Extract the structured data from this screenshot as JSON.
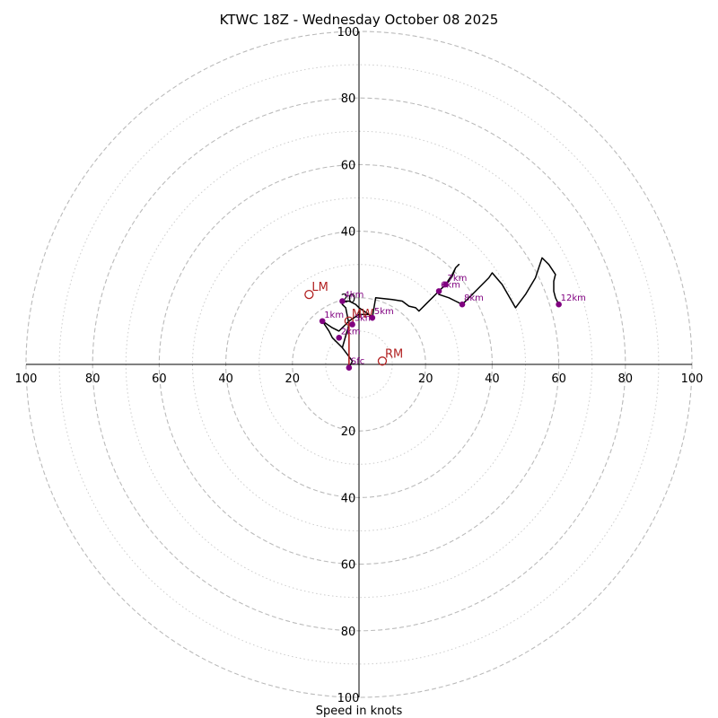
{
  "chart_data": {
    "type": "hodograph",
    "title": "KTWC 18Z - Wednesday October 08 2025",
    "xlabel": "Speed in knots",
    "range": 100,
    "ring_major_step": 20,
    "ring_minor_step": 10,
    "ticks": {
      "x_left": [
        "100",
        "80",
        "60",
        "40",
        "20"
      ],
      "x_right": [
        "20",
        "40",
        "60",
        "80",
        "100"
      ],
      "y_up": [
        "20",
        "40",
        "60",
        "80",
        "100"
      ],
      "y_down": [
        "20",
        "40",
        "60",
        "80",
        "100"
      ]
    },
    "ticks_values": [
      20,
      40,
      60,
      80,
      100
    ],
    "colors": {
      "trace": "#000000",
      "markers": "#800080",
      "motion": "#b22222",
      "grid_major": "#bbbbbb",
      "grid_minor": "#cccccc",
      "axis": "#000000"
    },
    "trace": [
      [
        -3,
        -1
      ],
      [
        -2,
        1
      ],
      [
        -5,
        5
      ],
      [
        -8,
        8
      ],
      [
        -9,
        10
      ],
      [
        -11,
        13
      ],
      [
        -8,
        11
      ],
      [
        -6,
        10
      ],
      [
        -5,
        11
      ],
      [
        -4,
        12
      ],
      [
        -3,
        13
      ],
      [
        0,
        15
      ],
      [
        3,
        15
      ],
      [
        4,
        14
      ],
      [
        5,
        20
      ],
      [
        10,
        19.5
      ],
      [
        13,
        19
      ],
      [
        15,
        17.5
      ],
      [
        17,
        17
      ],
      [
        18,
        16
      ],
      [
        20,
        18
      ],
      [
        22,
        20
      ],
      [
        24,
        22
      ],
      [
        26,
        24
      ],
      [
        28,
        27
      ],
      [
        29,
        29
      ],
      [
        30,
        30
      ],
      [
        29,
        29
      ],
      [
        28,
        26.5
      ],
      [
        27,
        25
      ],
      [
        25,
        23
      ],
      [
        24,
        22
      ],
      [
        24,
        21
      ],
      [
        27,
        20
      ],
      [
        29,
        19
      ],
      [
        31,
        18
      ],
      [
        35,
        22
      ],
      [
        39,
        26
      ],
      [
        40,
        27.5
      ],
      [
        43,
        24
      ],
      [
        47,
        17
      ],
      [
        50,
        21
      ],
      [
        53,
        26
      ],
      [
        54,
        29
      ],
      [
        55,
        32
      ],
      [
        56,
        31
      ],
      [
        57,
        30
      ],
      [
        59,
        27
      ],
      [
        58.5,
        25
      ],
      [
        58.5,
        22
      ],
      [
        59,
        20
      ],
      [
        60,
        18
      ]
    ],
    "trace_branch": [
      [
        -5,
        5
      ],
      [
        -3,
        12
      ],
      [
        -4,
        17
      ],
      [
        -5,
        18
      ],
      [
        -5,
        19
      ],
      [
        -3,
        19
      ],
      [
        -1,
        18
      ],
      [
        0,
        17
      ],
      [
        3,
        15
      ]
    ],
    "height_points": [
      {
        "label": "Sfc",
        "x": -3,
        "y": -1
      },
      {
        "label": "1km",
        "x": -11,
        "y": 13
      },
      {
        "label": "2km",
        "x": -6,
        "y": 8
      },
      {
        "label": "3km",
        "x": -2,
        "y": 12
      },
      {
        "label": "4km",
        "x": -5,
        "y": 19
      },
      {
        "label": "5km",
        "x": 4,
        "y": 14
      },
      {
        "label": "6km",
        "x": 24,
        "y": 22
      },
      {
        "label": "7km",
        "x": 26,
        "y": 24
      },
      {
        "label": "8km",
        "x": 31,
        "y": 18
      },
      {
        "label": "12km",
        "x": 60,
        "y": 18
      }
    ],
    "motion_vectors": [
      {
        "label": "LM",
        "x": -15,
        "y": 21
      },
      {
        "label": "MW",
        "x": -3,
        "y": 13
      },
      {
        "label": "RM",
        "x": 7,
        "y": 1
      }
    ],
    "mean_wind_segment": [
      [
        -3,
        -1
      ],
      [
        -3,
        13
      ]
    ]
  }
}
